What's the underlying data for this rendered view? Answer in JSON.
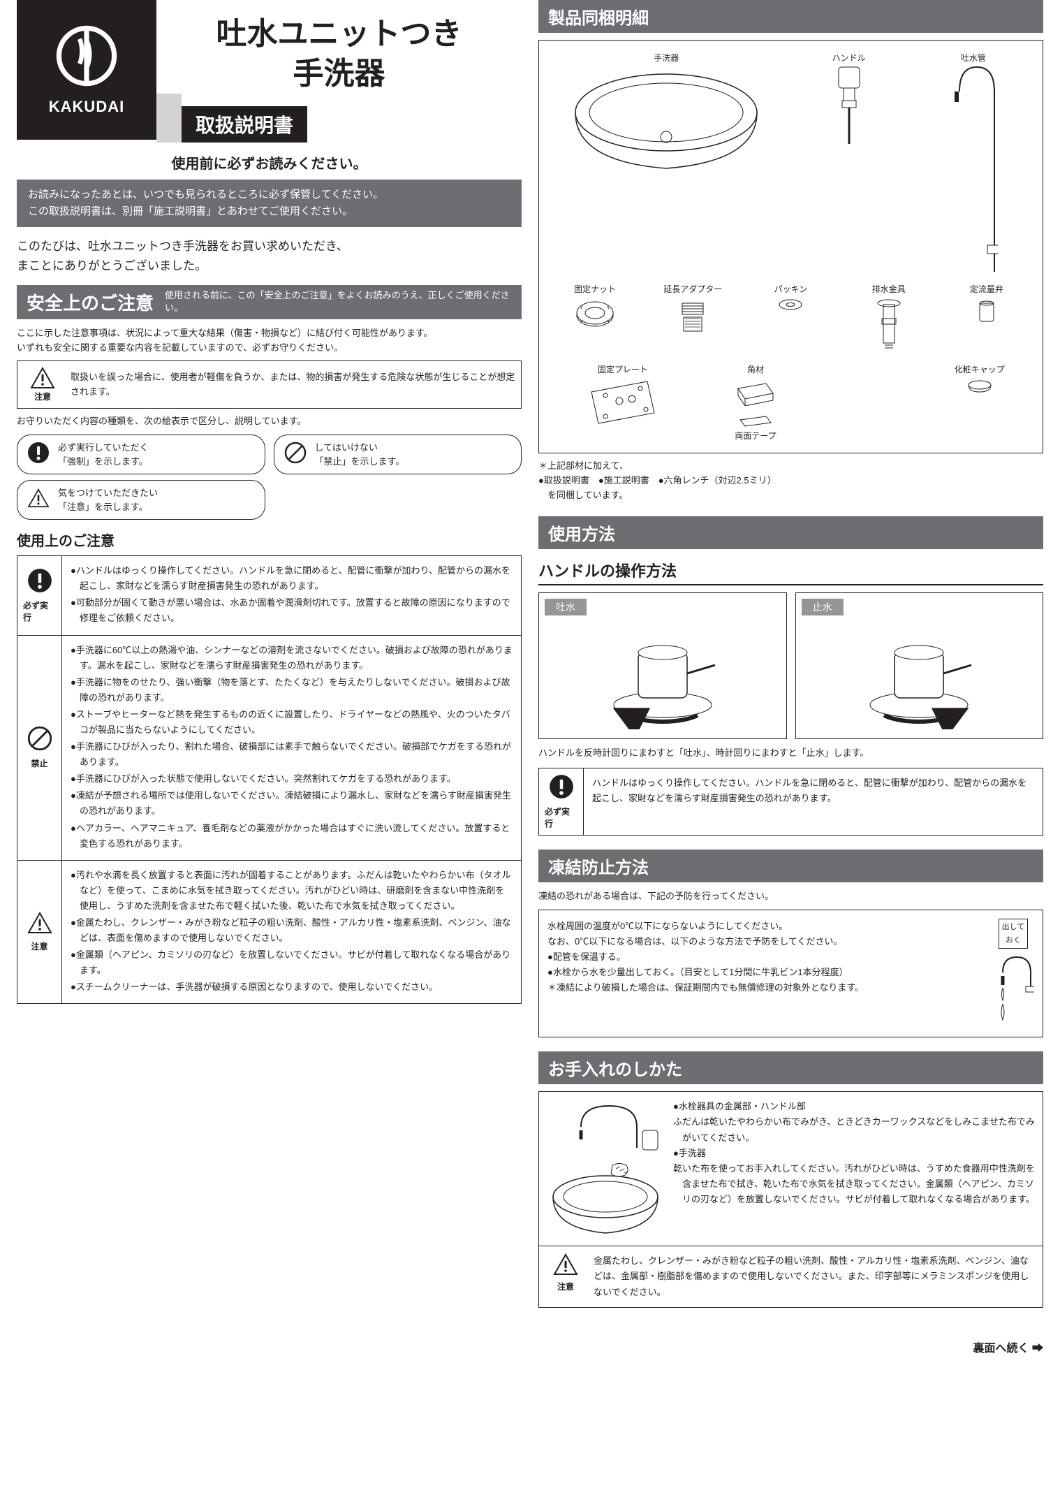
{
  "brand": "KAKUDAI",
  "product_title_line1": "吐水ユニットつき",
  "product_title_line2": "手洗器",
  "manual_label": "取扱説明書",
  "read_before": "使用前に必ずお読みください。",
  "keep_note_line1": "お読みになったあとは、いつでも見られるところに必ず保管してください。",
  "keep_note_line2": "この取扱説明書は、別冊「施工説明書」とあわせてご使用ください。",
  "thanks_line1": "このたびは、吐水ユニットつき手洗器をお買い求めいただき、",
  "thanks_line2": "まことにありがとうございました。",
  "safety_bar_title": "安全上のご注意",
  "safety_bar_sub": "使用される前に、この「安全上のご注意」をよくお読みのうえ、正しくご使用ください。",
  "safety_intro1": "ここに示した注意事項は、状況によって重大な結果（傷害・物損など）に結び付く可能性があります。",
  "safety_intro2": "いずれも安全に関する重要な内容を記載していますので、必ずお守りください。",
  "caution_label": "注意",
  "caution_desc": "取扱いを誤った場合に、使用者が軽傷を負うか、または、物的損害が発生する危険な状態が生じることが想定されます。",
  "legend_intro": "お守りいただく内容の種類を、次の絵表示で区分し、説明しています。",
  "legend_mandatory": "必ず実行していただく\n「強制」を示します。",
  "legend_prohibit": "してはいけない\n「禁止」を示します。",
  "legend_caution": "気をつけていただきたい\n「注意」を示します。",
  "usage_heading": "使用上のご注意",
  "mandatory_label": "必ず実行",
  "prohibit_label": "禁止",
  "usage_mandatory_items": [
    "●ハンドルはゆっくり操作してください。ハンドルを急に閉めると、配管に衝撃が加わり、配管からの漏水を起こし、家財などを濡らす財産損害発生の恐れがあります。",
    "●可動部分が固くて動きが悪い場合は、水あか固着や潤滑剤切れです。放置すると故障の原因になりますので修理をご依頼ください。"
  ],
  "usage_prohibit_items": [
    "●手洗器に60℃以上の熱湯や油、シンナーなどの溶剤を流さないでください。破損および故障の恐れがあります。漏水を起こし、家財などを濡らす財産損害発生の恐れがあります。",
    "●手洗器に物をのせたり、強い衝撃（物を落とす、たたくなど）を与えたりしないでください。破損および故障の恐れがあります。",
    "●ストーブやヒーターなど熱を発生するものの近くに設置したり、ドライヤーなどの熱風や、火のついたタバコが製品に当たらないようにしてください。",
    "●手洗器にひびが入ったり、割れた場合、破損部には素手で触らないでください。破損部でケガをする恐れがあります。",
    "●手洗器にひびが入った状態で使用しないでください。突然割れてケガをする恐れがあります。",
    "●凍結が予想される場所では使用しないでください。凍結破損により漏水し、家財などを濡らす財産損害発生の恐れがあります。",
    "●ヘアカラー、ヘアマニキュア、養毛剤などの薬液がかかった場合はすぐに洗い流してください。放置すると変色する恐れがあります。"
  ],
  "usage_caution_items": [
    "●汚れや水滴を長く放置すると表面に汚れが固着することがあります。ふだんは乾いたやわらかい布（タオルなど）を使って、こまめに水気を拭き取ってください。汚れがひどい時は、研磨剤を含まない中性洗剤を使用し、うすめた洗剤を含ませた布で軽く拭いた後、乾いた布で水気を拭き取ってください。",
    "●金属たわし、クレンザー・みがき粉など粒子の粗い洗剤、酸性・アルカリ性・塩素系洗剤、ベンジン、油などは、表面を傷めますので使用しないでください。",
    "●金属類（ヘアピン、カミソリの刃など）を放置しないでください。サビが付着して取れなくなる場合があります。",
    "●スチームクリーナーは、手洗器が破損する原因となりますので、使用しないでください。"
  ],
  "parts_heading": "製品同梱明細",
  "parts": {
    "basin": "手洗器",
    "handle": "ハンドル",
    "spout": "吐水管",
    "nut": "固定ナット",
    "adapter": "延長アダプター",
    "packing": "パッキン",
    "drain": "排水金具",
    "flow": "定流量弁",
    "plate": "固定プレート",
    "wood": "角材",
    "tape": "両面テープ",
    "cap": "化粧キャップ"
  },
  "parts_note1": "＊上記部材に加えて、",
  "parts_note2": "●取扱説明書　●施工説明書　●六角レンチ（対辺2.5ミリ）",
  "parts_note3": "　を同梱しています。",
  "usage_method_heading": "使用方法",
  "handle_op_heading": "ハンドルの操作方法",
  "handle_open": "吐水",
  "handle_close": "止水",
  "handle_note": "ハンドルを反時計回りにまわすと「吐水」、時計回りにまわすと「止水」します。",
  "handle_req": "ハンドルはゆっくり操作してください。ハンドルを急に閉めると、配管に衝撃が加わり、配管からの漏水を起こし、家財などを濡らす財産損害発生の恐れがあります。",
  "freeze_heading": "凍結防止方法",
  "freeze_intro": "凍結の恐れがある場合は、下記の予防を行ってください。",
  "freeze_items": [
    "水栓周囲の温度が0℃以下にならないようにしてください。",
    "なお、0℃以下になる場合は、以下のような方法で予防をしてください。",
    "●配管を保温する。",
    "●水栓から水を少量出しておく。（目安として1分間に牛乳ビン1本分程度）",
    "＊凍結により破損した場合は、保証期間内でも無償修理の対象外となります。"
  ],
  "freeze_callout": "出して\nおく",
  "care_heading": "お手入れのしかた",
  "care_items": [
    "●水栓器具の金属部・ハンドル部",
    "ふだんは乾いたやわらかい布でみがき、ときどきカーワックスなどをしみこませた布でみがいてください。",
    "●手洗器",
    "乾いた布を使ってお手入れしてください。汚れがひどい時は、うすめた食器用中性洗剤を含ませた布で拭き、乾いた布で水気を拭き取ってください。金属類（ヘアピン、カミソリの刃など）を放置しないでください。サビが付着して取れなくなる場合があります。"
  ],
  "care_caution": "金属たわし、クレンザー・みがき粉など粒子の粗い洗剤、酸性・アルカリ性・塩素系洗剤、ベンジン、油などは、金属部・樹脂部を傷めますので使用しないでください。また、印字部等にメラミンスポンジを使用しないでください。",
  "footer": "裏面へ続く ➡",
  "colors": {
    "black": "#231f20",
    "darkgray": "#6d6e71",
    "lightgray": "#d1d3d4",
    "midgray": "#939598"
  }
}
